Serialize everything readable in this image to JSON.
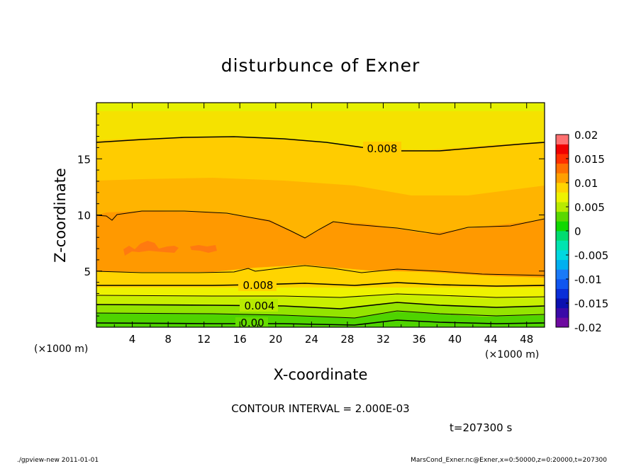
{
  "chart_data": {
    "type": "heatmap",
    "title": "disturbunce of Exner",
    "xlabel": "X-coordinate",
    "ylabel": "Z-coordinate",
    "x_unit": "(×1000 m)",
    "y_unit": "(×1000 m)",
    "xlim": [
      0,
      50
    ],
    "ylim": [
      0,
      20
    ],
    "x_ticks": [
      4,
      8,
      12,
      16,
      20,
      24,
      28,
      32,
      36,
      40,
      44,
      48
    ],
    "y_ticks": [
      5,
      10,
      15
    ],
    "colorbar": {
      "ticks": [
        "0.02",
        "0.015",
        "0.01",
        "0.005",
        "0",
        "-0.005",
        "-0.01",
        "-0.015",
        "-0.02"
      ],
      "range": [
        -0.02,
        0.02
      ]
    },
    "contour_labels": [
      "0.008",
      "0.008",
      "0.004",
      "0.00"
    ],
    "contour_interval_text": "CONTOUR INTERVAL = 2.000E-03",
    "time_text": "t=207300 s",
    "footer_left": "./gpview-new  2011-01-01",
    "footer_right": "MarsCond_Exner.nc@Exner,x=0:50000,z=0:20000,t=207300"
  }
}
